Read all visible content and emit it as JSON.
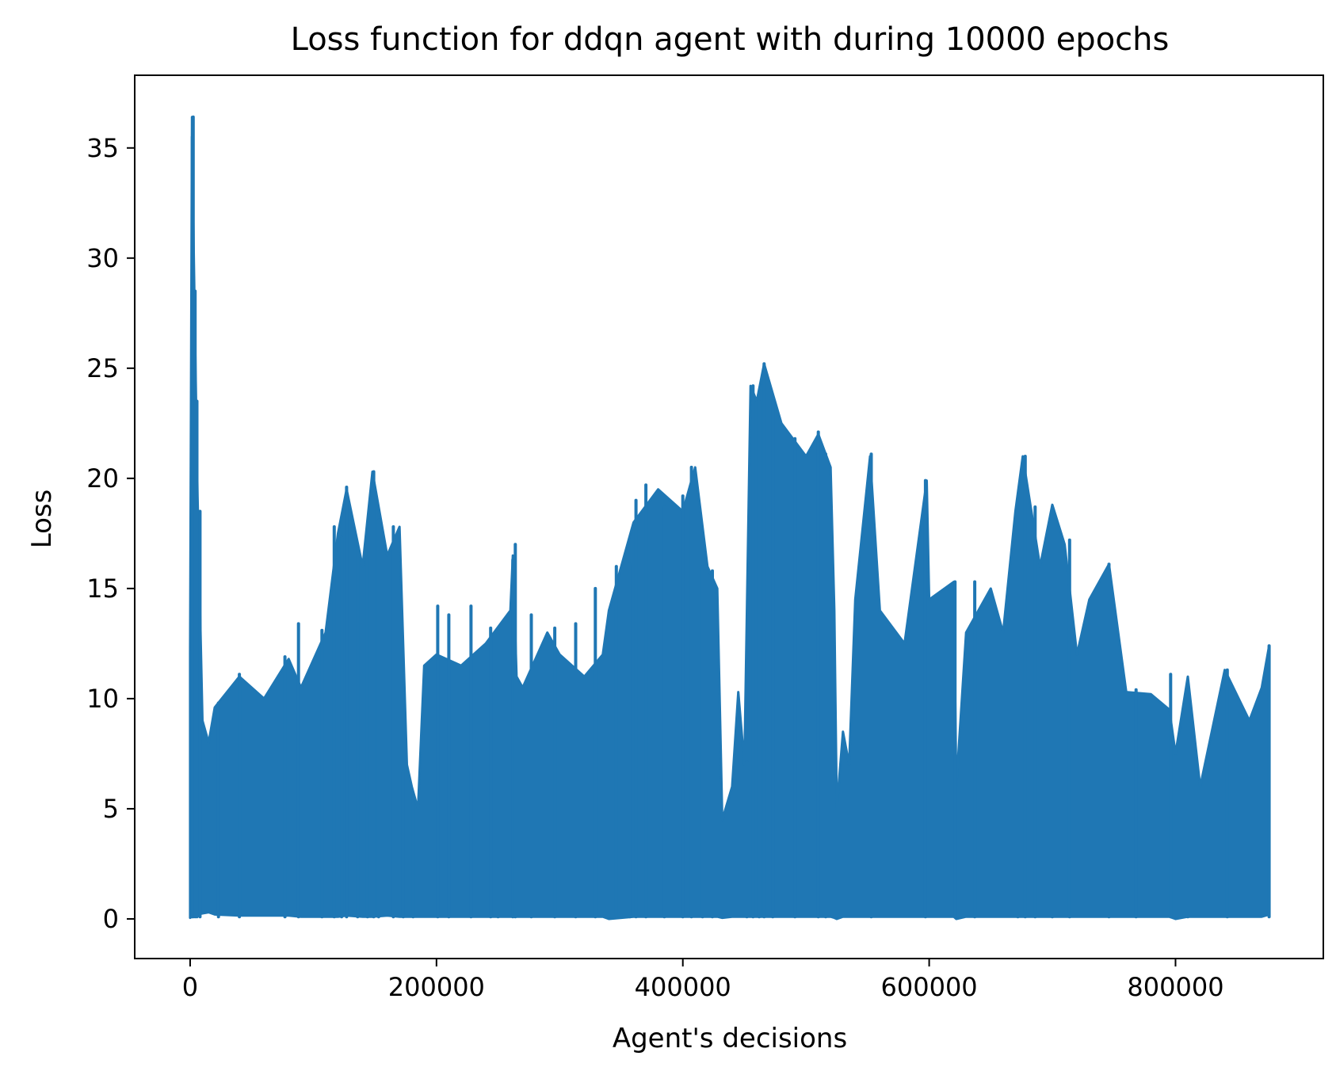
{
  "chart_data": {
    "type": "line",
    "title": "Loss function for ddqn agent with during 10000 epochs",
    "xlabel": "Agent's decisions",
    "ylabel": "Loss",
    "xlim": [
      -45000,
      920000
    ],
    "ylim": [
      -1.8,
      38.3
    ],
    "xticks": [
      0,
      200000,
      400000,
      600000,
      800000
    ],
    "xtick_labels": [
      "0",
      "200000",
      "400000",
      "600000",
      "800000"
    ],
    "yticks": [
      0,
      5,
      10,
      15,
      20,
      25,
      30,
      35
    ],
    "ytick_labels": [
      "0",
      "5",
      "10",
      "15",
      "20",
      "25",
      "30",
      "35"
    ],
    "grid": false,
    "legend": "none",
    "line_color": "#1f77b4",
    "series": [
      {
        "name": "",
        "note": "dense per-decision loss; dense band top and peak values sampled along x",
        "x": [
          0,
          1500,
          3000,
          6000,
          10000,
          15000,
          20000,
          40000,
          60000,
          80000,
          90000,
          110000,
          120000,
          127000,
          140000,
          148000,
          160000,
          170000,
          176000,
          180000,
          185000,
          190000,
          200000,
          220000,
          240000,
          260000,
          262000,
          265000,
          270000,
          290000,
          300000,
          320000,
          335000,
          340000,
          360000,
          380000,
          400000,
          410000,
          420000,
          428000,
          432000,
          440000,
          445000,
          450000,
          455000,
          460000,
          466000,
          480000,
          500000,
          510000,
          520000,
          523000,
          525000,
          530000,
          535000,
          540000,
          552000,
          560000,
          580000,
          598000,
          600000,
          620000,
          622000,
          630000,
          650000,
          660000,
          670000,
          676000,
          690000,
          700000,
          710000,
          720000,
          730000,
          746000,
          760000,
          780000,
          795000,
          800000,
          810000,
          820000,
          840000,
          860000,
          870000,
          876000
        ],
        "band_top": [
          12,
          36.4,
          30,
          19.2,
          9,
          8,
          9.6,
          11,
          10,
          11.8,
          10.5,
          13,
          17.5,
          19.5,
          16,
          20.3,
          16.5,
          17.8,
          7,
          6,
          5,
          11.5,
          12,
          11.5,
          12.5,
          14,
          16.5,
          11,
          10.5,
          13,
          12,
          11,
          12,
          14,
          18,
          19.5,
          18.5,
          20.5,
          16,
          15,
          4.5,
          6,
          10.3,
          7,
          24.2,
          23.5,
          25.2,
          22.5,
          21,
          22,
          20.5,
          14,
          5,
          8.5,
          7,
          14.5,
          21,
          14,
          12.5,
          19.9,
          14.5,
          15.3,
          6,
          13,
          15,
          13,
          18.5,
          21,
          16,
          18.8,
          17,
          12,
          14.5,
          16.1,
          10.3,
          10.2,
          9.5,
          7.5,
          11,
          6,
          11.3,
          9,
          10.5,
          12.4
        ],
        "band_bottom": [
          0.05,
          0.1,
          0.15,
          0.2,
          0.25,
          0.3,
          0.2,
          0.15,
          0.15,
          0.15,
          0.1,
          0.1,
          0.1,
          0.15,
          0.1,
          0.1,
          0.15,
          0.1,
          0.1,
          0.1,
          0.1,
          0.1,
          0.1,
          0.1,
          0.1,
          0.1,
          0.1,
          0.1,
          0.1,
          0.1,
          0.1,
          0.1,
          0.1,
          0.0,
          0.1,
          0.1,
          0.1,
          0.1,
          0.1,
          0.1,
          0.05,
          0.1,
          0.1,
          0.1,
          0.1,
          0.1,
          0.1,
          0.1,
          0.1,
          0.1,
          0.1,
          0.05,
          0.0,
          0.1,
          0.1,
          0.1,
          0.1,
          0.1,
          0.1,
          0.1,
          0.1,
          0.1,
          0.0,
          0.1,
          0.1,
          0.1,
          0.1,
          0.1,
          0.1,
          0.1,
          0.1,
          0.1,
          0.1,
          0.1,
          0.1,
          0.1,
          0.1,
          0.0,
          0.1,
          0.1,
          0.1,
          0.1,
          0.1,
          0.2
        ],
        "spikes_x": [
          1800,
          2500,
          4000,
          5500,
          8000,
          23000,
          40000,
          77000,
          88000,
          107000,
          117000,
          123000,
          127000,
          136000,
          144000,
          149000,
          153000,
          165000,
          173000,
          181000,
          201000,
          210000,
          228000,
          244000,
          250000,
          262000,
          264000,
          277000,
          296000,
          313000,
          329000,
          346000,
          357000,
          362000,
          370000,
          385000,
          400000,
          407000,
          416000,
          424000,
          452000,
          457000,
          462000,
          466000,
          473000,
          491000,
          510000,
          516000,
          553000,
          597000,
          621000,
          637000,
          672000,
          678000,
          686000,
          700000,
          714000,
          746000,
          768000,
          796000,
          810000,
          842000,
          876000
        ],
        "spikes_y": [
          35.5,
          36.4,
          28.5,
          23.5,
          18.5,
          9.8,
          11.1,
          11.9,
          13.4,
          13.1,
          17.8,
          17.3,
          19.6,
          16.9,
          16.4,
          20.3,
          18.1,
          17.8,
          6.7,
          5.6,
          14.2,
          13.8,
          14.2,
          13.2,
          12.9,
          16.3,
          17.0,
          13.8,
          13.2,
          13.4,
          15.0,
          16.0,
          16.1,
          19.0,
          19.7,
          18.7,
          19.2,
          20.5,
          16.0,
          15.8,
          7.1,
          24.2,
          23.5,
          25.2,
          23.5,
          21.8,
          22.1,
          21.1,
          21.1,
          19.9,
          15.3,
          15.3,
          19.0,
          21.0,
          18.7,
          18.7,
          17.2,
          16.1,
          10.4,
          11.1,
          8.7,
          11.3,
          12.4
        ]
      }
    ]
  }
}
